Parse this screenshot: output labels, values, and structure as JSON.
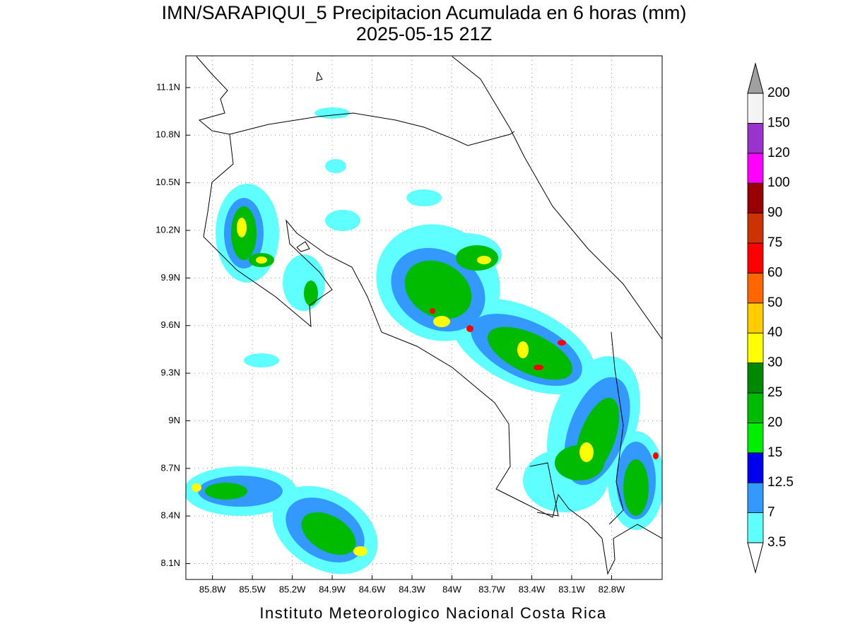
{
  "title": "IMN/SARAPIQUI_5 Precipitacion Acumulada en 6 horas (mm)",
  "subtitle": "2025-05-15 21Z",
  "footer": "Instituto Meteorologico Nacional Costa Rica",
  "map": {
    "xlim": [
      -86.0,
      -82.42
    ],
    "ylim": [
      8.0,
      11.3
    ],
    "xticks": [
      {
        "value": -85.8,
        "label": "85.8W"
      },
      {
        "value": -85.5,
        "label": "85.5W"
      },
      {
        "value": -85.2,
        "label": "85.2W"
      },
      {
        "value": -84.9,
        "label": "84.9W"
      },
      {
        "value": -84.6,
        "label": "84.6W"
      },
      {
        "value": -84.3,
        "label": "84.3W"
      },
      {
        "value": -84.0,
        "label": "84W"
      },
      {
        "value": -83.7,
        "label": "83.7W"
      },
      {
        "value": -83.4,
        "label": "83.4W"
      },
      {
        "value": -83.1,
        "label": "83.1W"
      },
      {
        "value": -82.8,
        "label": "82.8W"
      }
    ],
    "yticks": [
      {
        "value": 8.1,
        "label": "8.1N"
      },
      {
        "value": 8.4,
        "label": "8.4N"
      },
      {
        "value": 8.7,
        "label": "8.7N"
      },
      {
        "value": 9.0,
        "label": "9N"
      },
      {
        "value": 9.3,
        "label": "9.3N"
      },
      {
        "value": 9.6,
        "label": "9.6N"
      },
      {
        "value": 9.9,
        "label": "9.9N"
      },
      {
        "value": 10.2,
        "label": "10.2N"
      },
      {
        "value": 10.5,
        "label": "10.5N"
      },
      {
        "value": 10.8,
        "label": "10.8N"
      },
      {
        "value": 11.1,
        "label": "11.1N"
      }
    ],
    "grid": true
  },
  "colorbar": {
    "levels": [
      3.5,
      7,
      12.5,
      15,
      20,
      25,
      30,
      40,
      50,
      60,
      75,
      90,
      100,
      120,
      150,
      200
    ],
    "colors": [
      "#60ffff",
      "#3399ff",
      "#0000ee",
      "#00ee00",
      "#00bb00",
      "#008800",
      "#ffff00",
      "#ffcc00",
      "#ff6600",
      "#ff0000",
      "#cc3300",
      "#990000",
      "#ff00ff",
      "#9933cc",
      "#f4f4f4"
    ],
    "under_color": "#ffffff",
    "over_color": "#a0a0a0"
  }
}
